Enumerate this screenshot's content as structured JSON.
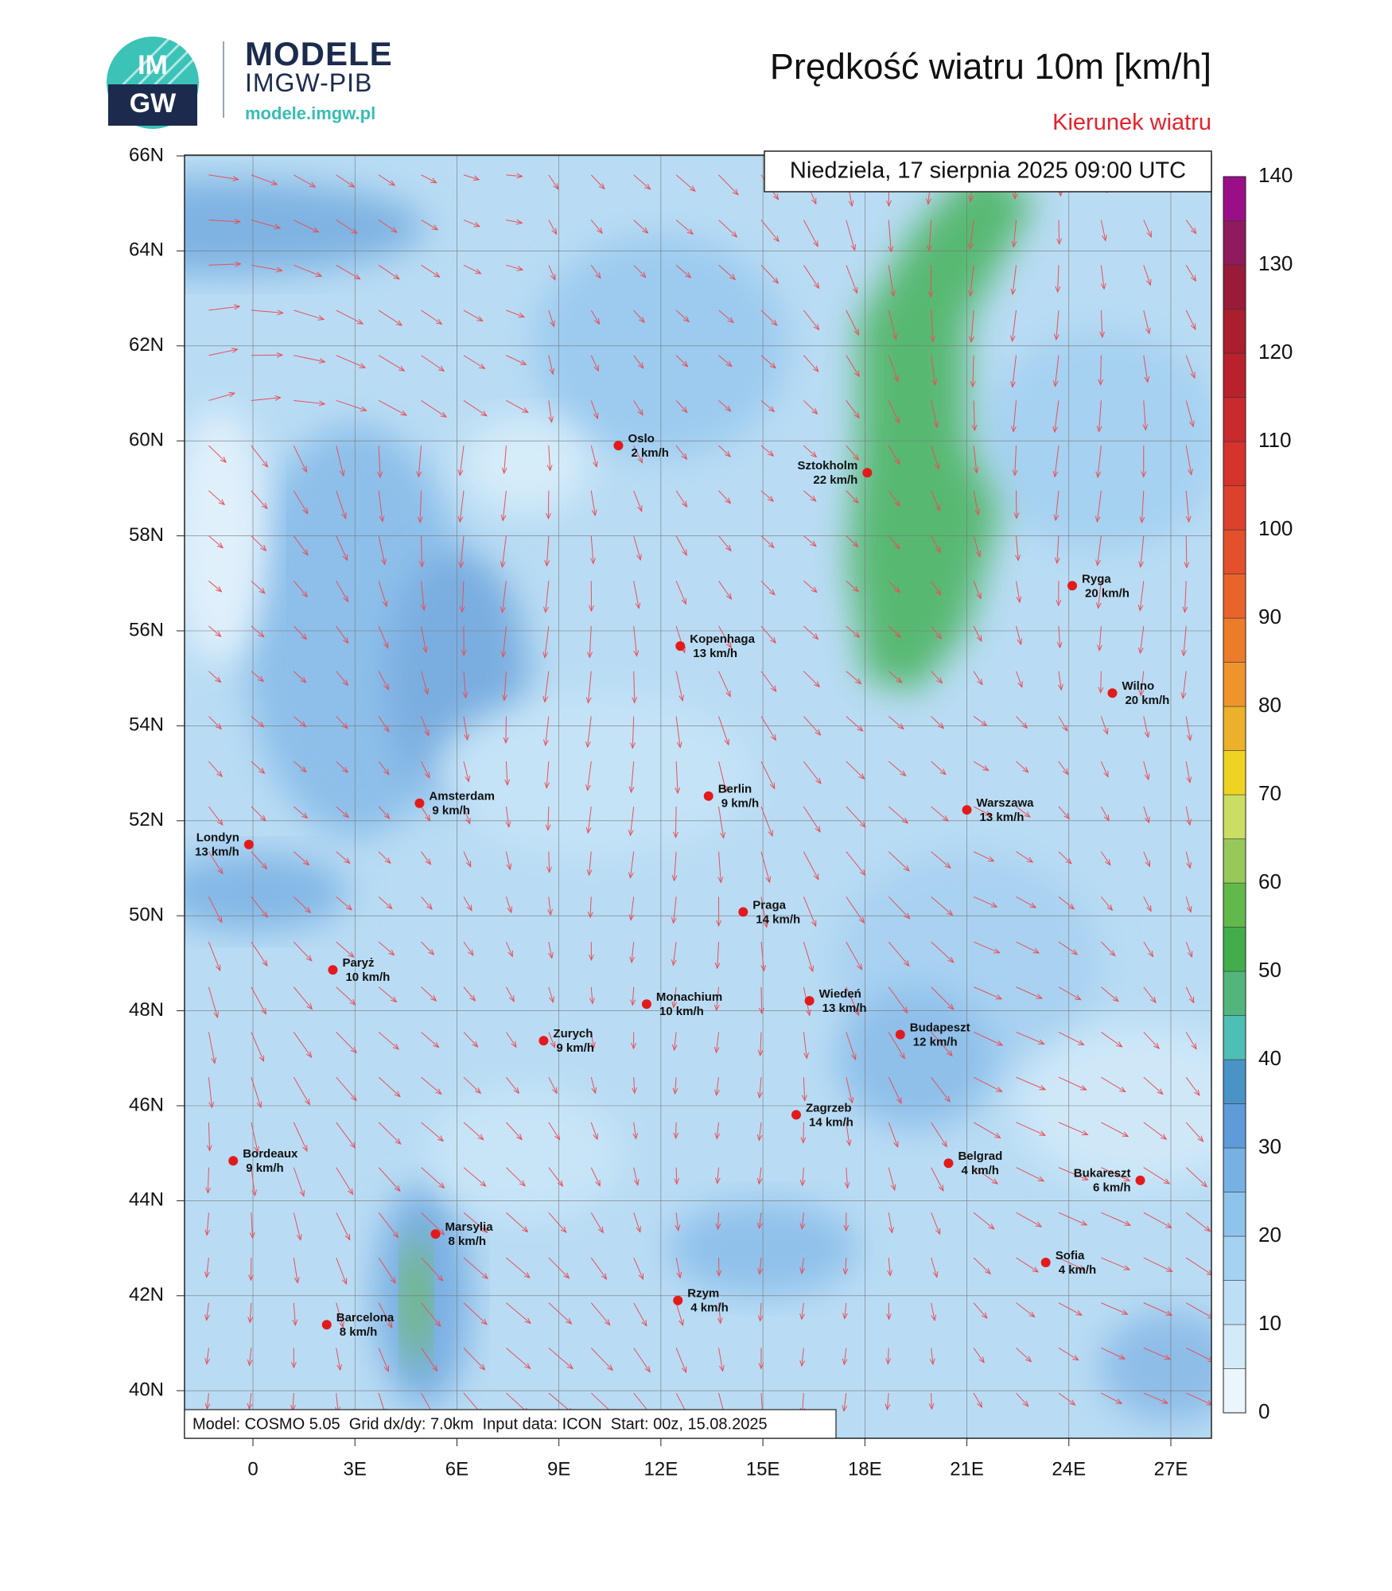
{
  "header": {
    "logo_top": "IM",
    "logo_bottom": "GW",
    "brand": "MODELE",
    "organization": "IMGW-PIB",
    "url": "modele.imgw.pl",
    "title": "Prędkość wiatru 10m [km/h]",
    "subtitle": "Kierunek wiatru",
    "date": "Niedziela, 17 sierpnia 2025 09:00 UTC"
  },
  "map": {
    "lat_labels": [
      "66N",
      "64N",
      "62N",
      "60N",
      "58N",
      "56N",
      "54N",
      "52N",
      "50N",
      "48N",
      "46N",
      "44N",
      "42N",
      "40N"
    ],
    "lon_labels": [
      "0",
      "3E",
      "6E",
      "9E",
      "12E",
      "15E",
      "18E",
      "21E",
      "24E",
      "27E"
    ],
    "cities": [
      {
        "name": "Oslo",
        "wind": "2 km/h"
      },
      {
        "name": "Sztokholm",
        "wind": "22 km/h"
      },
      {
        "name": "Ryga",
        "wind": "20 km/h"
      },
      {
        "name": "Kopenhaga",
        "wind": "13 km/h"
      },
      {
        "name": "Wilno",
        "wind": "20 km/h"
      },
      {
        "name": "Amsterdam",
        "wind": "9 km/h"
      },
      {
        "name": "Berlin",
        "wind": "9 km/h"
      },
      {
        "name": "Warszawa",
        "wind": "13 km/h"
      },
      {
        "name": "Londyn",
        "wind": "13 km/h"
      },
      {
        "name": "Praga",
        "wind": "14 km/h"
      },
      {
        "name": "Paryż",
        "wind": "10 km/h"
      },
      {
        "name": "Monachium",
        "wind": "10 km/h"
      },
      {
        "name": "Wiedeń",
        "wind": "13 km/h"
      },
      {
        "name": "Zurych",
        "wind": "9 km/h"
      },
      {
        "name": "Budapeszt",
        "wind": "12 km/h"
      },
      {
        "name": "Zagrzeb",
        "wind": "14 km/h"
      },
      {
        "name": "Bordeaux",
        "wind": "9 km/h"
      },
      {
        "name": "Belgrad",
        "wind": "4 km/h"
      },
      {
        "name": "Bukareszt",
        "wind": "6 km/h"
      },
      {
        "name": "Marsylia",
        "wind": "8 km/h"
      },
      {
        "name": "Sofia",
        "wind": "4 km/h"
      },
      {
        "name": "Rzym",
        "wind": "4 km/h"
      },
      {
        "name": "Barcelona",
        "wind": "8 km/h"
      }
    ]
  },
  "colorbar": {
    "labels": [
      0,
      10,
      20,
      30,
      40,
      50,
      60,
      70,
      80,
      90,
      100,
      110,
      120,
      130,
      140
    ],
    "colors": [
      "#eaf5fc",
      "#d3eaf8",
      "#bcdff5",
      "#a5d2f1",
      "#8ec3ec",
      "#77b1e4",
      "#5e9bd8",
      "#4a93c6",
      "#4ebfb4",
      "#52b67c",
      "#43ad4c",
      "#62b94b",
      "#97c95a",
      "#cbdd63",
      "#eed322",
      "#ebb12a",
      "#ef942b",
      "#ec7b2a",
      "#e8642b",
      "#e2502c",
      "#dc412c",
      "#d5332b",
      "#c92a2c",
      "#b9222c",
      "#aa1e2e",
      "#9a1a3a",
      "#8f1a5c",
      "#9a0f88"
    ]
  },
  "footer": "Model: COSMO 5.05  Grid dx/dy: 7.0km  Input data: ICON  Start: 00z, 15.08.2025"
}
